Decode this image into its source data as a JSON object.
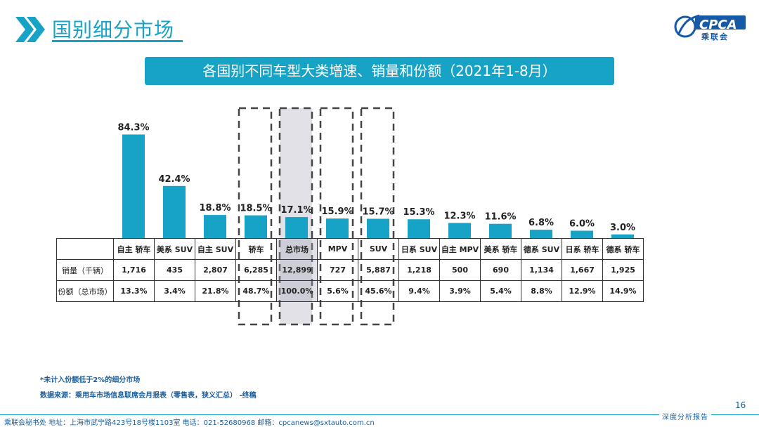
{
  "header": {
    "title": "国别细分市场",
    "logo_text": "CPCA",
    "logo_sub": "乘联会"
  },
  "banner": {
    "text": "各国别不同车型大类增速、销量和份额（2021年1-8月）"
  },
  "table": {
    "row_labels": [
      "销量（千辆）",
      "份额（总市场）"
    ]
  },
  "chart_data": {
    "type": "bar",
    "title": "各国别不同车型大类增速、销量和份额（2021年1-8月）",
    "categories": [
      "自主 轿车",
      "美系 SUV",
      "自主 SUV",
      "轿车",
      "总市场",
      "MPV",
      "SUV",
      "日系 SUV",
      "自主 MPV",
      "美系 轿车",
      "德系 SUV",
      "日系 轿车",
      "德系 轿车"
    ],
    "values": [
      84.3,
      42.4,
      18.8,
      18.5,
      17.1,
      15.9,
      15.7,
      15.3,
      12.3,
      11.6,
      6.8,
      6.0,
      3.0
    ],
    "value_labels": [
      "84.3%",
      "42.4%",
      "18.8%",
      "18.5%",
      "17.1%",
      "15.9%",
      "15.7%",
      "15.3%",
      "12.3%",
      "11.6%",
      "6.8%",
      "6.0%",
      "3.0%"
    ],
    "sales": [
      "1,716",
      "435",
      "2,807",
      "6,285",
      "12,899",
      "727",
      "5,887",
      "1,218",
      "500",
      "690",
      "1,134",
      "1,667",
      "1,925"
    ],
    "shares": [
      "13.3%",
      "3.4%",
      "21.8%",
      "48.7%",
      "100.0%",
      "5.6%",
      "45.6%",
      "9.4%",
      "3.9%",
      "5.4%",
      "8.8%",
      "12.9%",
      "14.9%"
    ],
    "highlighted_categories": [
      "轿车",
      "总市场",
      "MPV",
      "SUV"
    ],
    "bar_color": "#17a3c6",
    "highlight_fill": "#aaaab9"
  },
  "notes": {
    "footnote": "*未计入份额低于2%的细分市场",
    "source": "数据来源：乘用车市场信息联席会月报表（零售表，狭义汇总） -终稿"
  },
  "page_number": "16",
  "footer": {
    "address": "乘联会秘书处   地址：上海市武宁路423号18号楼1103室  电话：021-52680968   邮箱：cpcanews@sxtauto.com.cn",
    "right_text": "深度分析报告"
  }
}
